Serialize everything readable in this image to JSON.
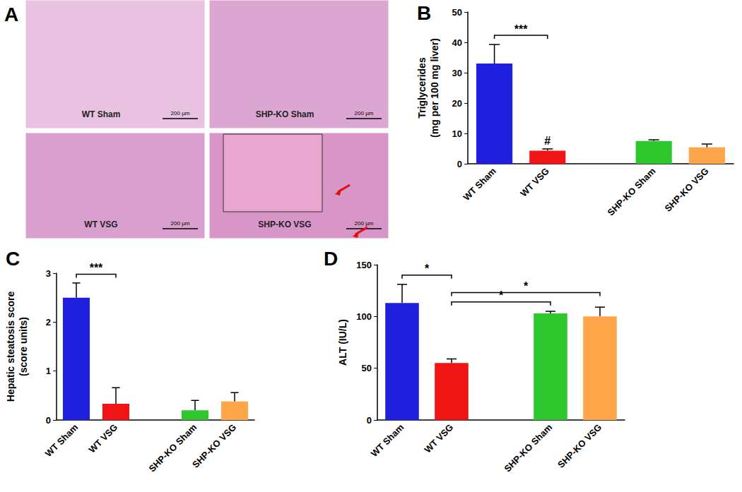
{
  "chart_data": [
    {
      "panel": "B",
      "type": "bar",
      "categories": [
        "WT Sham",
        "WT VSG",
        null,
        "SHP-KO Sham",
        "SHP-KO VSG"
      ],
      "values": [
        33,
        4.3,
        null,
        7.5,
        5.4
      ],
      "errors": [
        6.3,
        0.6,
        null,
        0.4,
        1.1
      ],
      "colors": [
        "#1f1fe0",
        "#f01414",
        null,
        "#2ec82e",
        "#ffa54a"
      ],
      "y_label": "Triglycerides\n(mg per 100 mg liver)",
      "ylim": [
        0,
        50
      ],
      "yticks": [
        0,
        10,
        20,
        30,
        40,
        50
      ],
      "annotations": [
        {
          "between": [
            "WT Sham",
            "WT VSG"
          ],
          "text": "***"
        },
        {
          "at": "WT VSG",
          "text": "#"
        }
      ]
    },
    {
      "panel": "C",
      "type": "bar",
      "categories": [
        "WT Sham",
        "WT VSG",
        null,
        "SHP-KO Sham",
        "SHP-KO VSG"
      ],
      "values": [
        2.5,
        0.33,
        null,
        0.2,
        0.38
      ],
      "errors": [
        0.3,
        0.33,
        null,
        0.2,
        0.18
      ],
      "colors": [
        "#1f1fe0",
        "#f01414",
        null,
        "#2ec82e",
        "#ffa54a"
      ],
      "y_label": "Hepatic steatosis score\n(score units)",
      "ylim": [
        0,
        3
      ],
      "yticks": [
        0,
        1,
        2,
        3
      ],
      "annotations": [
        {
          "between": [
            "WT Sham",
            "WT VSG"
          ],
          "text": "***"
        }
      ]
    },
    {
      "panel": "D",
      "type": "bar",
      "categories": [
        "WT Sham",
        "WT VSG",
        null,
        "SHP-KO Sham",
        "SHP-KO VSG"
      ],
      "values": [
        113,
        55,
        null,
        103,
        100
      ],
      "errors": [
        18,
        4,
        null,
        2,
        9
      ],
      "colors": [
        "#1f1fe0",
        "#f01414",
        null,
        "#2ec82e",
        "#ffa54a"
      ],
      "y_label": "ALT (IU/L)",
      "ylim": [
        0,
        150
      ],
      "yticks": [
        0,
        50,
        100,
        150
      ],
      "annotations": [
        {
          "between": [
            "WT Sham",
            "WT VSG"
          ],
          "text": "*"
        },
        {
          "between": [
            "WT VSG",
            "SHP-KO Sham"
          ],
          "text": "*"
        },
        {
          "between": [
            "WT VSG",
            "SHP-KO VSG"
          ],
          "text": "*"
        }
      ]
    }
  ],
  "image_panel": {
    "panel": "A",
    "images": [
      {
        "label": "WT Sham",
        "scale_bar": "200 µm"
      },
      {
        "label": "SHP-KO Sham",
        "scale_bar": "200 µm"
      },
      {
        "label": "WT VSG",
        "scale_bar": "200 µm"
      },
      {
        "label": "SHP-KO VSG",
        "scale_bar": "200 µm"
      }
    ]
  }
}
